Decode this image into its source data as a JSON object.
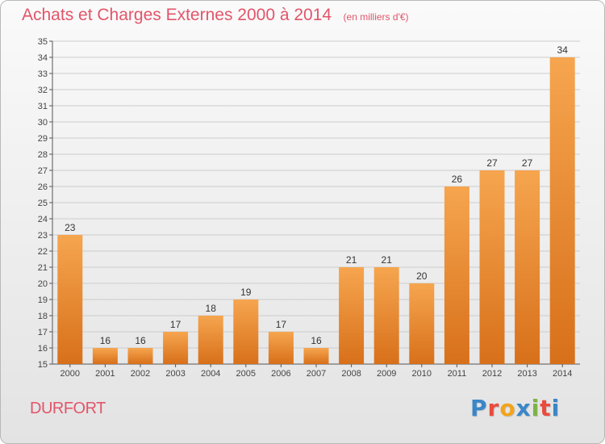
{
  "title": "Achats et Charges Externes 2000 à 2014",
  "unit": "(en milliers d'€)",
  "commune": "DURFORT",
  "logo": {
    "text": "Proxiti",
    "colors": [
      "#3a86c8",
      "#e94b3c",
      "#f2a41c",
      "#3a86c8",
      "#7cb342",
      "#e94b3c",
      "#3a86c8"
    ]
  },
  "colors": {
    "accent": "#e2556a",
    "bar_top": "#f6a54f",
    "bar_bottom": "#d8701a",
    "grid": "#cccccc"
  },
  "chart_data": {
    "type": "bar",
    "categories": [
      "2000",
      "2001",
      "2002",
      "2003",
      "2004",
      "2005",
      "2006",
      "2007",
      "2008",
      "2009",
      "2010",
      "2011",
      "2012",
      "2013",
      "2014"
    ],
    "values": [
      23,
      16,
      16,
      17,
      18,
      19,
      17,
      16,
      21,
      21,
      20,
      26,
      27,
      27,
      34
    ],
    "title": "Achats et Charges Externes 2000 à 2014",
    "xlabel": "",
    "ylabel": "",
    "ylim": [
      15,
      35
    ],
    "yticks": [
      15,
      16,
      17,
      18,
      19,
      20,
      21,
      22,
      23,
      24,
      25,
      26,
      27,
      28,
      29,
      30,
      31,
      32,
      33,
      34,
      35
    ],
    "grid": true,
    "data_labels": true
  }
}
